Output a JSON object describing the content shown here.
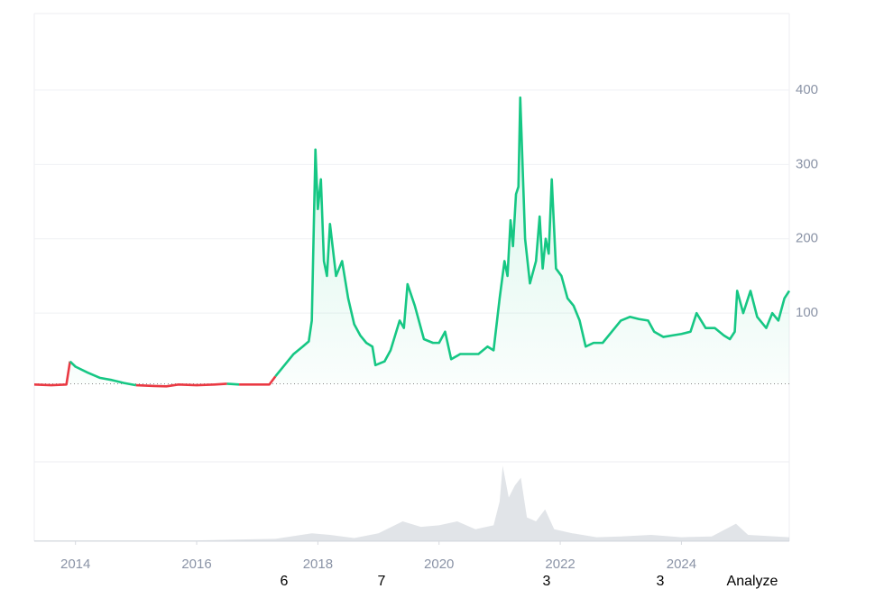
{
  "chart_data": {
    "type": "line",
    "x": [
      2013.32,
      2013.6,
      2013.85,
      2013.91,
      2014.0,
      2014.2,
      2014.4,
      2014.6,
      2014.8,
      2015.0,
      2015.3,
      2015.5,
      2015.7,
      2016.0,
      2016.3,
      2016.5,
      2016.7,
      2016.9,
      2017.2,
      2017.3,
      2017.45,
      2017.6,
      2017.75,
      2017.85,
      2017.9,
      2017.96,
      2018.0,
      2018.05,
      2018.1,
      2018.15,
      2018.2,
      2018.3,
      2018.4,
      2018.5,
      2018.6,
      2018.7,
      2018.8,
      2018.9,
      2018.95,
      2019.1,
      2019.2,
      2019.35,
      2019.42,
      2019.48,
      2019.6,
      2019.75,
      2019.9,
      2020.0,
      2020.1,
      2020.2,
      2020.35,
      2020.5,
      2020.65,
      2020.8,
      2020.9,
      2021.0,
      2021.08,
      2021.13,
      2021.18,
      2021.22,
      2021.27,
      2021.31,
      2021.34,
      2021.42,
      2021.5,
      2021.6,
      2021.66,
      2021.71,
      2021.76,
      2021.81,
      2021.86,
      2021.93,
      2022.02,
      2022.12,
      2022.22,
      2022.32,
      2022.42,
      2022.55,
      2022.7,
      2022.85,
      2023.0,
      2023.15,
      2023.3,
      2023.45,
      2023.55,
      2023.7,
      2023.85,
      2024.0,
      2024.15,
      2024.25,
      2024.4,
      2024.55,
      2024.7,
      2024.8,
      2024.88,
      2024.92,
      2025.02,
      2025.14,
      2025.25,
      2025.4,
      2025.5,
      2025.6,
      2025.7,
      2025.78
    ],
    "series": [
      {
        "values": [
          4,
          3,
          4,
          35,
          28,
          20,
          13,
          10,
          6,
          3,
          2,
          1.5,
          4,
          3,
          4,
          5,
          4,
          4,
          4,
          15,
          30,
          45,
          55,
          62,
          90,
          320,
          240,
          280,
          170,
          150,
          220,
          150,
          170,
          120,
          85,
          70,
          60,
          55,
          30,
          35,
          50,
          90,
          80,
          139,
          110,
          65,
          60,
          60,
          75,
          38,
          45,
          45,
          45,
          55,
          50,
          120,
          170,
          150,
          225,
          190,
          260,
          270,
          390,
          200,
          140,
          170,
          230,
          160,
          200,
          180,
          280,
          160,
          150,
          120,
          110,
          90,
          55,
          60,
          60,
          75,
          90,
          95,
          92,
          90,
          75,
          68,
          70,
          72,
          75,
          100,
          80,
          80,
          70,
          65,
          75,
          130,
          100,
          130,
          95,
          80,
          100,
          90,
          120,
          130
        ]
      }
    ],
    "color": "#16c784",
    "below_color": "#ea3943",
    "baseline": 5,
    "xlim": [
      2013.32,
      2025.78
    ],
    "xticks": [
      2014,
      2016,
      2018,
      2020,
      2022,
      2024
    ],
    "ylim": [
      -100,
      503
    ],
    "yticks": [
      100,
      200,
      300,
      400
    ],
    "grid": true,
    "volume": {
      "x": [
        2013.32,
        2016.0,
        2017.3,
        2017.9,
        2018.2,
        2018.6,
        2019.0,
        2019.4,
        2019.7,
        2020.0,
        2020.3,
        2020.6,
        2020.9,
        2021.0,
        2021.05,
        2021.15,
        2021.25,
        2021.35,
        2021.45,
        2021.6,
        2021.75,
        2021.9,
        2022.2,
        2022.6,
        2023.0,
        2023.5,
        2024.0,
        2024.5,
        2024.9,
        2025.1,
        2025.78
      ],
      "values": [
        1,
        1,
        3,
        10,
        8,
        4,
        10,
        25,
        18,
        20,
        25,
        15,
        20,
        50,
        95,
        55,
        70,
        80,
        30,
        25,
        40,
        15,
        10,
        5,
        6,
        8,
        5,
        6,
        22,
        8,
        5
      ],
      "ylim": [
        0,
        100
      ],
      "color": "#c9ced6"
    },
    "annotations": [
      "6",
      "7",
      "3",
      "3",
      "Analyze"
    ]
  }
}
